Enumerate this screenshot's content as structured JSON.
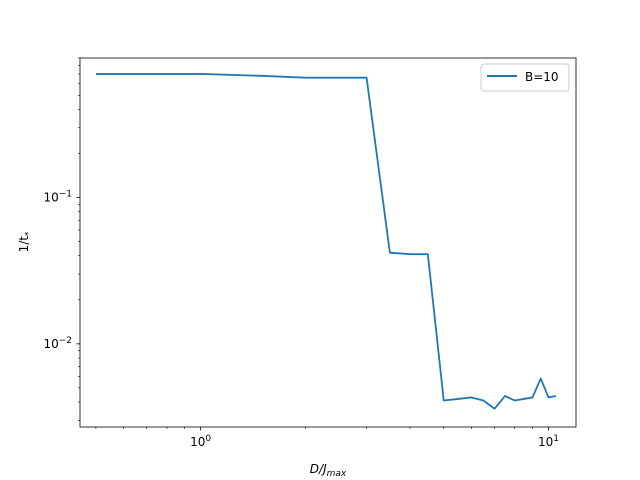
{
  "chart_data": {
    "type": "line",
    "title": "",
    "xlabel": "D/J",
    "xlabel_sub": "max",
    "ylabel": "1/t",
    "ylabel_sub": "*",
    "xscale": "log",
    "yscale": "log",
    "xlim": [
      0.45,
      12.0
    ],
    "ylim": [
      0.0027,
      0.9
    ],
    "x_major_ticks": [
      {
        "value": 1,
        "base": "10",
        "exp": "0"
      },
      {
        "value": 10,
        "base": "10",
        "exp": "1"
      }
    ],
    "y_major_ticks": [
      {
        "value": 0.01,
        "base": "10",
        "exp": "−2"
      },
      {
        "value": 0.1,
        "base": "10",
        "exp": "−1"
      }
    ],
    "grid": false,
    "legend_position": "upper right",
    "series": [
      {
        "name": "B=10",
        "color": "#1f77b4",
        "x": [
          0.5,
          1.0,
          1.5,
          2.0,
          2.5,
          3.0,
          3.5,
          4.0,
          4.5,
          5.0,
          5.5,
          6.0,
          6.5,
          7.0,
          7.5,
          8.0,
          8.5,
          9.0,
          9.5,
          10.0,
          10.5
        ],
        "y": [
          0.7,
          0.7,
          0.68,
          0.66,
          0.66,
          0.66,
          0.042,
          0.041,
          0.041,
          0.0041,
          0.0042,
          0.0043,
          0.0041,
          0.0036,
          0.0044,
          0.0041,
          0.0042,
          0.0043,
          0.0058,
          0.0043,
          0.0044
        ]
      }
    ]
  }
}
